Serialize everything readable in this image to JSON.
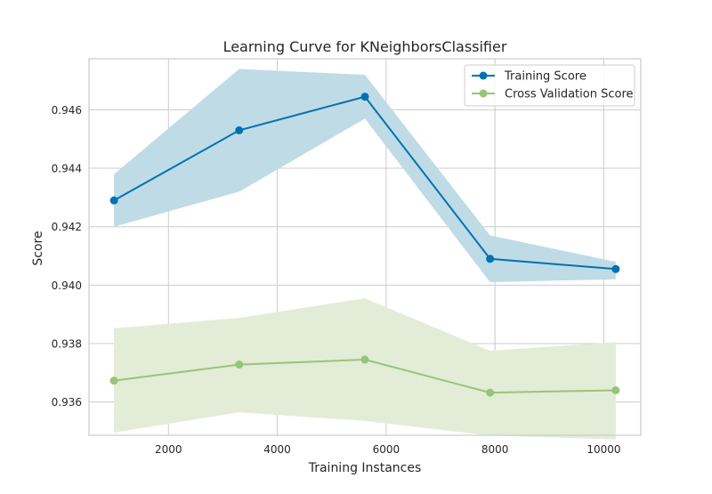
{
  "chart_data": {
    "type": "line",
    "title": "Learning Curve for KNeighborsClassifier",
    "xlabel": "Training Instances",
    "ylabel": "Score",
    "xlim": [
      540,
      10680
    ],
    "ylim": [
      0.93486,
      0.94775
    ],
    "xticks": [
      2000,
      4000,
      6000,
      8000,
      10000
    ],
    "xtick_labels": [
      "2000",
      "4000",
      "6000",
      "8000",
      "10000"
    ],
    "yticks": [
      0.936,
      0.938,
      0.94,
      0.942,
      0.944,
      0.946
    ],
    "ytick_labels": [
      "0.936",
      "0.938",
      "0.940",
      "0.942",
      "0.944",
      "0.946"
    ],
    "grid": true,
    "legend_position": "top-right",
    "x": [
      1000,
      3300,
      5610,
      7910,
      10220
    ],
    "series": [
      {
        "name": "Training Score",
        "color": "#0072b2",
        "band_color": "#bfdbe6",
        "values": [
          0.9429,
          0.9453,
          0.94645,
          0.9409,
          0.94055
        ],
        "upper": [
          0.9438,
          0.9474,
          0.9472,
          0.9417,
          0.9408
        ],
        "lower": [
          0.942,
          0.9432,
          0.9457,
          0.9401,
          0.9402
        ]
      },
      {
        "name": "Cross Validation Score",
        "color": "#99c477",
        "band_color": "#e3ecd7",
        "values": [
          0.93673,
          0.93728,
          0.93745,
          0.93632,
          0.9364
        ],
        "upper": [
          0.93852,
          0.93888,
          0.93955,
          0.93775,
          0.93805
        ],
        "lower": [
          0.93495,
          0.93565,
          0.93535,
          0.93485,
          0.93472
        ]
      }
    ]
  }
}
